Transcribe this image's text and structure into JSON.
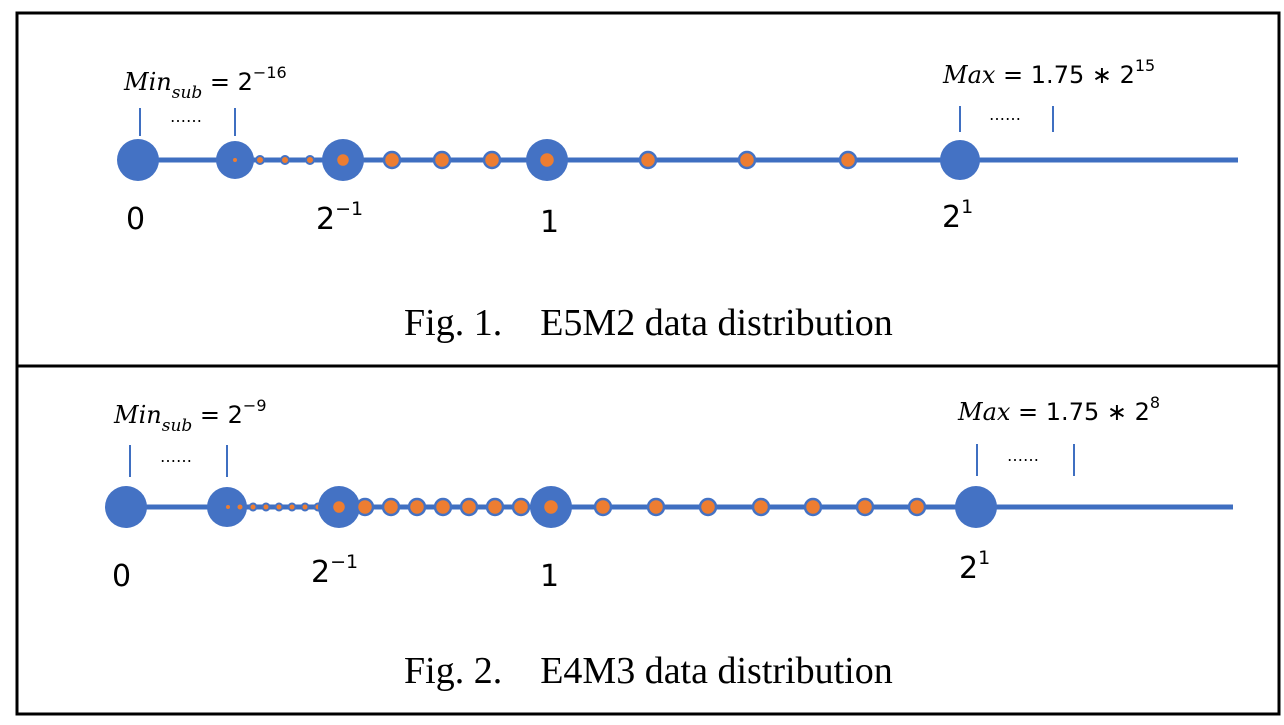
{
  "colors": {
    "axis": "#3f6fc1",
    "dot_fill_blue": "#4472c4",
    "dot_fill_orange": "#ed7d31",
    "border": "#000000"
  },
  "figures": [
    {
      "caption": "Fig. 1.    E5M2 data distribution",
      "labels": {
        "zero": "0",
        "half_base": "2",
        "half_exp": "−1",
        "one": "1",
        "two_base": "2",
        "two_exp": "1"
      },
      "min_annotation": {
        "name": "Min",
        "sub": "sub",
        "eq": " = 2",
        "exp": "−16"
      },
      "max_annotation": {
        "name": "Max",
        "eq": " = 1.75 ∗ 2",
        "exp": "15"
      },
      "ellipsis_left": "……",
      "ellipsis_right": "……",
      "subnormal_points": 3,
      "points_between_half_and_one": 3,
      "points_between_one_and_two": 3
    },
    {
      "caption": "Fig. 2.    E4M3 data distribution",
      "labels": {
        "zero": "0",
        "half_base": "2",
        "half_exp": "−1",
        "one": "1",
        "two_base": "2",
        "two_exp": "1"
      },
      "min_annotation": {
        "name": "Min",
        "sub": "sub",
        "eq": " = 2",
        "exp": "−9"
      },
      "max_annotation": {
        "name": "Max",
        "eq": " = 1.75 ∗ 2",
        "exp": "8"
      },
      "ellipsis_left": "……",
      "ellipsis_right": "……",
      "subnormal_points": 7,
      "points_between_half_and_one": 7,
      "points_between_one_and_two": 7
    }
  ]
}
